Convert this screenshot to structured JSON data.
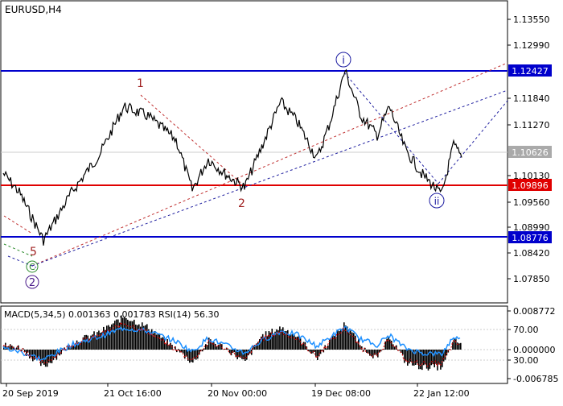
{
  "symbol_label": "EURUSD,H4",
  "colors": {
    "price_line": "#000000",
    "level_blue": "#0000cc",
    "level_red": "#e00000",
    "current_price": "#aaaaaa",
    "wave_red": "#a02020",
    "wave_blue": "#1a1aa0",
    "wave_green": "#2a8a2a",
    "macd_hist": "#000000",
    "rsi_line": "#1e90ff",
    "signal_line": "#e00000",
    "tag_blue_bg": "#0000cc",
    "tag_red_bg": "#e00000",
    "tag_gray_bg": "#aaaaaa"
  },
  "price_axis": {
    "ticks": [
      "1.13550",
      "1.12990",
      "1.11840",
      "1.11270",
      "1.10130",
      "1.09560",
      "1.08990",
      "1.08420",
      "1.07850"
    ]
  },
  "levels": {
    "upper": "1.12427",
    "middle": "1.09896",
    "lower": "1.08776",
    "current": "1.10626"
  },
  "time_axis": {
    "labels": [
      "20 Sep 2019",
      "21 Oct 16:00",
      "20 Nov 00:00",
      "19 Dec 08:00",
      "22 Jan 12:00"
    ]
  },
  "wave_labels": {
    "w1": "1",
    "w2": "2",
    "w5": "5",
    "wc": "C",
    "w2_circle": "2",
    "wi": "i",
    "wii": "ii"
  },
  "indicator": {
    "header": "MACD(5,34,5) 0.001363 0.001783 RSI(14) 56.30",
    "axis_ticks": [
      "0.008772",
      "70.00",
      "0.000000",
      "30.00",
      "-0.006785"
    ]
  },
  "chart_data": {
    "type": "line",
    "title": "EURUSD,H4",
    "x_labels": [
      "20 Sep 2019",
      "21 Oct 16:00",
      "20 Nov 00:00",
      "19 Dec 08:00",
      "22 Jan 12:00"
    ],
    "x": [
      0,
      20,
      50,
      85,
      120,
      150,
      180,
      215,
      235,
      255,
      275,
      300,
      320,
      345,
      365,
      390,
      405,
      425,
      445,
      465,
      480,
      500,
      520,
      545,
      560,
      570
    ],
    "series": [
      {
        "values": [
          1.103,
          1.099,
          1.089,
          1.099,
          1.107,
          1.117,
          1.115,
          1.11,
          1.0995,
          1.106,
          1.103,
          1.1,
          1.108,
          1.118,
          1.114,
          1.106,
          1.113,
          1.1245,
          1.115,
          1.111,
          1.117,
          1.108,
          1.103,
          1.0985,
          1.109,
          1.1063
        ]
      }
    ],
    "ylim": [
      1.076,
      1.139
    ],
    "indicator": {
      "rsi": [
        45,
        40,
        28,
        50,
        62,
        75,
        70,
        55,
        40,
        60,
        50,
        38,
        55,
        70,
        65,
        48,
        60,
        76,
        58,
        50,
        64,
        45,
        38,
        36,
        62,
        56.3
      ],
      "macd_hist": [
        0.001,
        0.0005,
        -0.004,
        0.0015,
        0.004,
        0.0075,
        0.005,
        0.0,
        -0.003,
        0.002,
        0.0005,
        -0.003,
        0.003,
        0.005,
        0.003,
        -0.002,
        0.002,
        0.006,
        0.0005,
        -0.002,
        0.003,
        -0.003,
        -0.004,
        -0.004,
        0.002,
        0.001363
      ]
    }
  }
}
